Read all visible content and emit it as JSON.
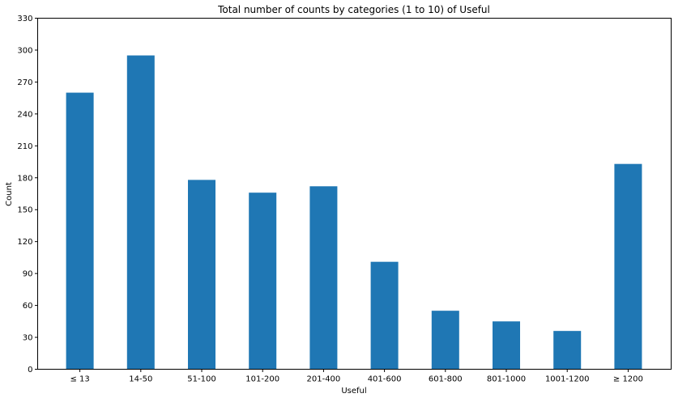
{
  "chart_data": {
    "type": "bar",
    "title": "Total number of counts by categories (1 to 10) of Useful",
    "xlabel": "Useful",
    "ylabel": "Count",
    "categories": [
      "≤ 13",
      "14-50",
      "51-100",
      "101-200",
      "201-400",
      "401-600",
      "601-800",
      "801-1000",
      "1001-1200",
      "≥ 1200"
    ],
    "values": [
      260,
      295,
      178,
      166,
      172,
      101,
      55,
      45,
      36,
      193
    ],
    "ylim": [
      0,
      330
    ],
    "yticks": [
      0,
      30,
      60,
      90,
      120,
      150,
      180,
      210,
      240,
      270,
      300,
      330
    ],
    "bar_color": "#1f77b4",
    "grid": false,
    "legend": "none"
  }
}
